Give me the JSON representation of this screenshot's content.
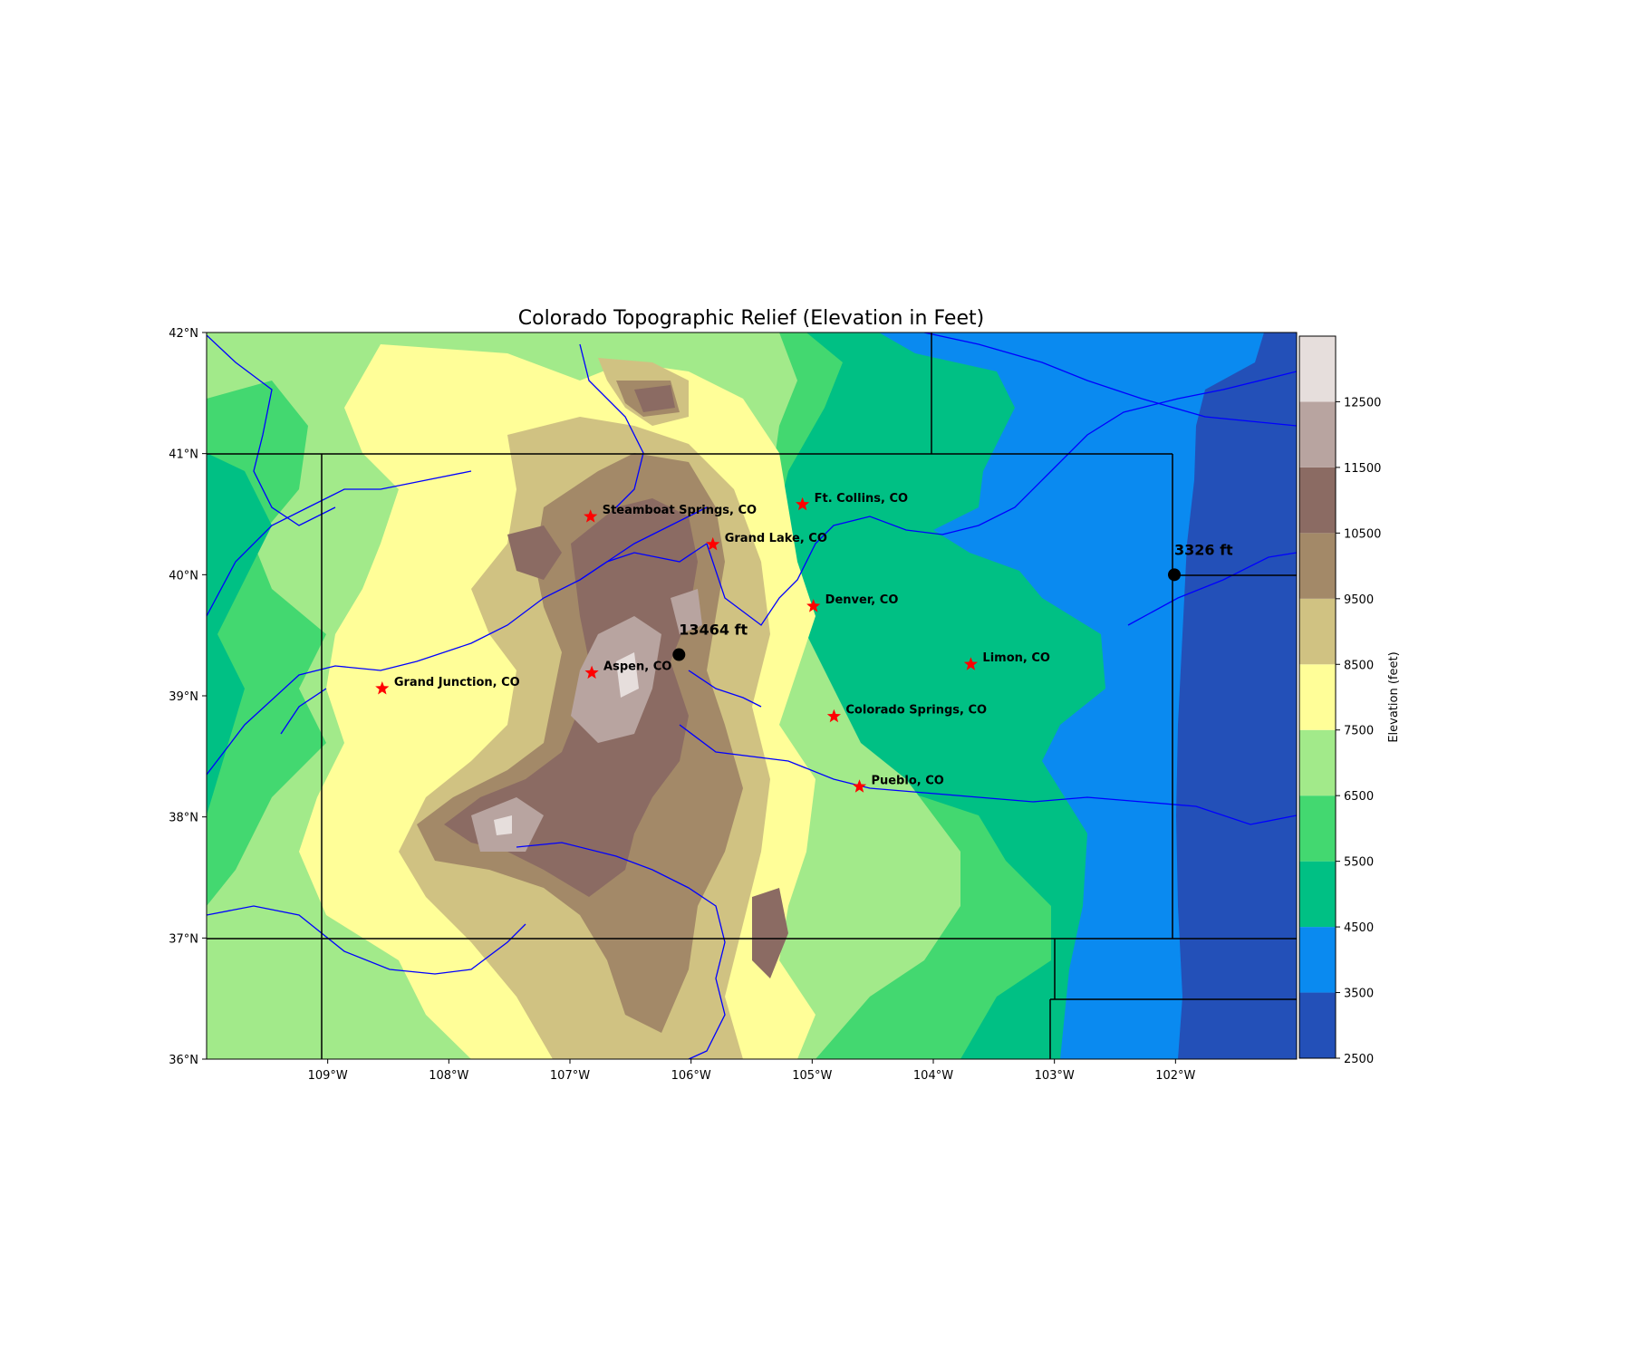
{
  "title": "Colorado Topographic Relief (Elevation in Feet)",
  "map": {
    "lon_range": [
      -110,
      -101
    ],
    "lat_range": [
      36,
      42
    ],
    "lon_ticks": [
      {
        "value": -109,
        "label": "109°W"
      },
      {
        "value": -108,
        "label": "108°W"
      },
      {
        "value": -107,
        "label": "107°W"
      },
      {
        "value": -106,
        "label": "106°W"
      },
      {
        "value": -105,
        "label": "105°W"
      },
      {
        "value": -104,
        "label": "104°W"
      },
      {
        "value": -103,
        "label": "103°W"
      },
      {
        "value": -102,
        "label": "102°W"
      }
    ],
    "lat_ticks": [
      {
        "value": 42,
        "label": "42°N"
      },
      {
        "value": 41,
        "label": "41°N"
      },
      {
        "value": 40,
        "label": "40°N"
      },
      {
        "value": 39,
        "label": "39°N"
      },
      {
        "value": 38,
        "label": "38°N"
      },
      {
        "value": 37,
        "label": "37°N"
      },
      {
        "value": 36,
        "label": "36°N"
      }
    ]
  },
  "cities": [
    {
      "name": "Steamboat Springs, CO",
      "lon": -106.83,
      "lat": 40.48
    },
    {
      "name": "Ft. Collins, CO",
      "lon": -105.08,
      "lat": 40.58
    },
    {
      "name": "Grand Lake, CO",
      "lon": -105.82,
      "lat": 40.25
    },
    {
      "name": "Denver, CO",
      "lon": -104.99,
      "lat": 39.74
    },
    {
      "name": "Aspen, CO",
      "lon": -106.82,
      "lat": 39.19
    },
    {
      "name": "Limon, CO",
      "lon": -103.69,
      "lat": 39.26
    },
    {
      "name": "Grand Junction, CO",
      "lon": -108.55,
      "lat": 39.06
    },
    {
      "name": "Colorado Springs, CO",
      "lon": -104.82,
      "lat": 38.83
    },
    {
      "name": "Pueblo, CO",
      "lon": -104.61,
      "lat": 38.25
    }
  ],
  "elevation_markers": [
    {
      "label": "13464 ft",
      "lon": -106.1,
      "lat": 39.34,
      "kind": "max"
    },
    {
      "label": "3326 ft",
      "lon": -102.01,
      "lat": 40.0,
      "kind": "min"
    }
  ],
  "colorbar": {
    "label": "Elevation (feet)",
    "levels": [
      2500,
      3500,
      4500,
      5500,
      6500,
      7500,
      8500,
      9500,
      10500,
      11500,
      12500,
      13500
    ],
    "tick_labels": [
      "2500",
      "3500",
      "4500",
      "5500",
      "6500",
      "7500",
      "8500",
      "9500",
      "10500",
      "11500",
      "12500"
    ],
    "colors": [
      "#2350b8",
      "#0a8af0",
      "#00c084",
      "#43d870",
      "#a2ea8a",
      "#fffe98",
      "#d0c282",
      "#a38968",
      "#8b6b63",
      "#b8a4a0",
      "#e6dedc"
    ]
  },
  "colors": {
    "river": "#0000ff",
    "city_marker": "#ff0000",
    "border": "#000000"
  },
  "chart_data": {
    "type": "heatmap",
    "title": "Colorado Topographic Relief (Elevation in Feet)",
    "xlabel": "",
    "ylabel": "",
    "xlim": [
      -110,
      -101
    ],
    "ylim": [
      36,
      42
    ],
    "colorbar_label": "Elevation (feet)",
    "max_elevation_ft": 13464,
    "min_elevation_ft": 3326
  }
}
